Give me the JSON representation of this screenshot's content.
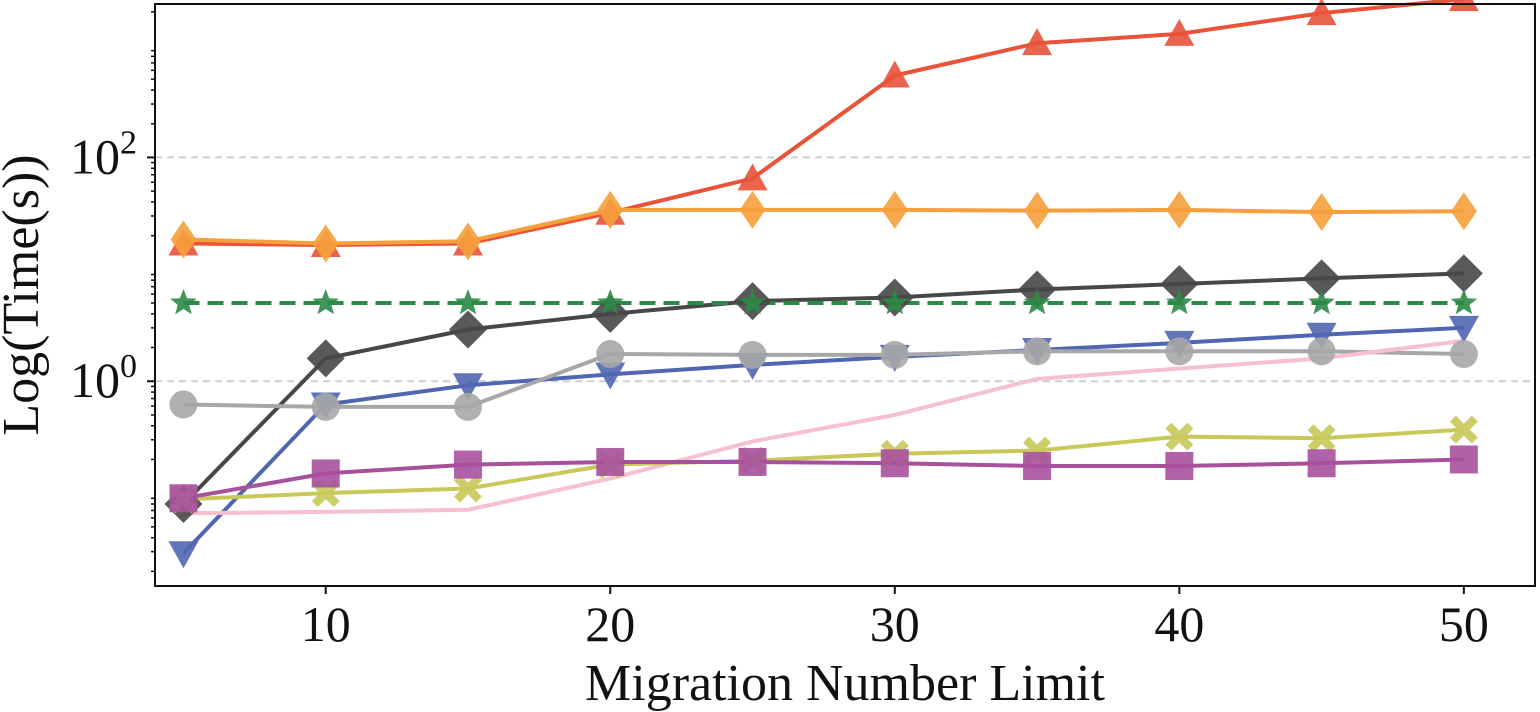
{
  "chart_data": {
    "type": "line",
    "xlabel": "Migration Number Limit",
    "ylabel": "Log(Time(s))",
    "yscale": "log",
    "xlim": [
      4.0,
      52.5
    ],
    "ylim": [
      0.0148,
      2350
    ],
    "xticks": [
      10,
      20,
      30,
      40,
      50
    ],
    "yticks": [
      {
        "value": 1,
        "base": "10",
        "exp": "0"
      },
      {
        "value": 100,
        "base": "10",
        "exp": "2"
      }
    ],
    "grid": "horizontal dashed at major y ticks",
    "x": [
      5,
      10,
      15,
      20,
      25,
      30,
      35,
      40,
      45,
      50
    ],
    "series": [
      {
        "color": "#e8533a",
        "marker": "triangle-up",
        "dash": false,
        "values": [
          17,
          16.5,
          17,
          32,
          65,
          540,
          1050,
          1270,
          1950,
          2600
        ]
      },
      {
        "color": "#f6a03c",
        "marker": "thin-diamond",
        "dash": false,
        "values": [
          18.5,
          17,
          17.8,
          34,
          34,
          34,
          33.5,
          34,
          32.5,
          33
        ]
      },
      {
        "color": "#474747",
        "marker": "diamond",
        "dash": false,
        "values": [
          0.08,
          1.6,
          2.9,
          4.0,
          5.2,
          5.6,
          6.6,
          7.4,
          8.3,
          9.2
        ]
      },
      {
        "color": "#2b8a46",
        "marker": "star",
        "dash": true,
        "values": [
          5,
          5,
          5,
          5,
          5,
          5,
          5,
          5,
          5,
          5
        ]
      },
      {
        "color": "#5166b0",
        "marker": "triangle-down",
        "dash": false,
        "values": [
          0.029,
          0.62,
          0.92,
          1.15,
          1.4,
          1.65,
          1.9,
          2.2,
          2.6,
          3.0
        ]
      },
      {
        "color": "#a7a7a9",
        "marker": "circle",
        "dash": false,
        "values": [
          0.62,
          0.59,
          0.59,
          1.75,
          1.72,
          1.72,
          1.85,
          1.85,
          1.85,
          1.75
        ]
      },
      {
        "color": "#f6bfd2",
        "marker": "none",
        "dash": false,
        "values": [
          0.066,
          0.068,
          0.071,
          0.135,
          0.29,
          0.5,
          1.05,
          1.3,
          1.6,
          2.3
        ]
      },
      {
        "color": "#c8c95a",
        "marker": "x-filled",
        "dash": false,
        "values": [
          0.088,
          0.1,
          0.11,
          0.18,
          0.195,
          0.225,
          0.24,
          0.32,
          0.31,
          0.37
        ]
      },
      {
        "color": "#a9509d",
        "marker": "square",
        "dash": false,
        "values": [
          0.09,
          0.15,
          0.18,
          0.19,
          0.19,
          0.185,
          0.175,
          0.175,
          0.185,
          0.2
        ]
      }
    ]
  }
}
